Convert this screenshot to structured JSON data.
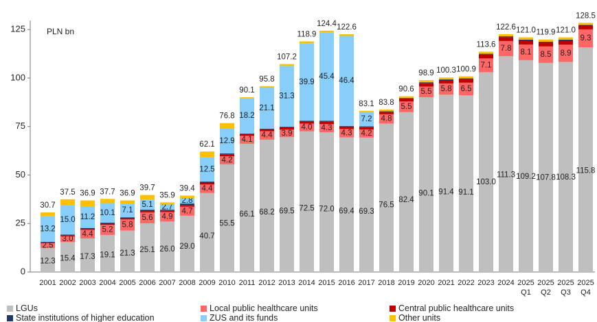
{
  "chart_data": {
    "type": "stacked_bar",
    "unit_label": "PLN bn",
    "categories": [
      "2001",
      "2002",
      "2003",
      "2004",
      "2005",
      "2006",
      "2007",
      "2008",
      "2009",
      "2010",
      "2011",
      "2012",
      "2013",
      "2014",
      "2015",
      "2016",
      "2017",
      "2018",
      "2019",
      "2020",
      "2021",
      "2022",
      "2023",
      "2024",
      "2025 Q1",
      "2025 Q2",
      "2025 Q3",
      "2025 Q4"
    ],
    "ylim": [
      0,
      130
    ],
    "yticks": [
      0,
      25,
      50,
      75,
      100,
      125
    ],
    "series": [
      {
        "name": "LGUs",
        "color": "#bfbfbf",
        "values": [
          12.3,
          15.4,
          17.3,
          19.1,
          21.3,
          25.1,
          26.0,
          29.0,
          40.7,
          55.5,
          66.1,
          68.2,
          69.5,
          72.5,
          72.0,
          69.4,
          69.3,
          76.5,
          82.4,
          90.1,
          91.4,
          91.1,
          103.0,
          111.3,
          109.2,
          107.8,
          108.3,
          115.8
        ],
        "value_labels": [
          "12.3",
          "15.4",
          "17.3",
          "19.1",
          "21.3",
          "25.1",
          "26.0",
          "29.0",
          "40.7",
          "55.5",
          "66.1",
          "68.2",
          "69.5",
          "72.5",
          "72.0",
          "69.4",
          "69.3",
          "76.5",
          "82.4",
          "90.1",
          "91.4",
          "91.1",
          "103.0",
          "111.3",
          "109.2",
          "107.8",
          "108.3",
          "115.8"
        ]
      },
      {
        "name": "Local public healthcare units",
        "color": "#ff6666",
        "values": [
          2.5,
          3.0,
          4.4,
          5.2,
          5.8,
          5.6,
          4.9,
          4.7,
          4.4,
          4.2,
          4.1,
          4.4,
          3.9,
          4.0,
          4.3,
          4.3,
          4.2,
          4.8,
          5.5,
          5.5,
          5.8,
          6.5,
          7.1,
          7.8,
          8.1,
          8.5,
          8.9,
          9.3
        ],
        "value_labels": [
          "2.5",
          "3.0",
          "4.4",
          "5.2",
          "5.8",
          "5.6",
          "4.9",
          "4.7",
          "4.4",
          "4.2",
          "4.1",
          "4.4",
          "3.9",
          "4.0",
          "4.3",
          "4.3",
          "4.2",
          "4.8",
          "5.5",
          "5.5",
          "5.8",
          "6.5",
          "7.1",
          "7.8",
          "8.1",
          "8.5",
          "8.9",
          "9.3"
        ]
      },
      {
        "name": "Central public healthcare units",
        "color": "#c00000",
        "values": [
          0.3,
          0.4,
          0.5,
          0.6,
          0.6,
          0.7,
          0.6,
          0.8,
          1.0,
          1.0,
          0.9,
          1.0,
          1.2,
          1.2,
          1.3,
          1.3,
          1.3,
          1.3,
          1.5,
          1.8,
          1.7,
          1.8,
          2.0,
          2.0,
          2.1,
          2.0,
          2.2,
          1.9
        ]
      },
      {
        "name": "State institutions of higher education",
        "color": "#1f3864",
        "values": [
          0.4,
          0.5,
          0.5,
          0.5,
          0.5,
          0.7,
          0.6,
          0.8,
          0.5,
          0.4,
          0.3,
          0.3,
          0.3,
          0.3,
          0.4,
          0.3,
          0.3,
          0.3,
          0.3,
          0.4,
          0.4,
          0.4,
          0.4,
          0.4,
          0.4,
          0.4,
          0.4,
          0.4
        ]
      },
      {
        "name": "ZUS and its funds",
        "color": "#87cefa",
        "values": [
          13.2,
          15.0,
          11.2,
          10.1,
          7.1,
          5.1,
          2.7,
          2.8,
          12.5,
          12.9,
          18.2,
          21.1,
          31.3,
          39.9,
          45.4,
          46.4,
          7.2,
          null,
          null,
          null,
          null,
          null,
          null,
          null,
          null,
          null,
          null,
          null
        ],
        "value_labels": [
          "13.2",
          "15.0",
          "11.2",
          "10.1",
          "7.1",
          "5.1",
          "2.7",
          "2.8",
          "12.5",
          "12.9",
          "18.2",
          "21.1",
          "31.3",
          "39.9",
          "45.4",
          "46.4",
          "7.2",
          null,
          null,
          null,
          null,
          null,
          null,
          null,
          null,
          null,
          null,
          null
        ]
      },
      {
        "name": "Other units",
        "color": "#ffc000",
        "values": [
          2.0,
          3.2,
          3.0,
          2.2,
          1.6,
          2.5,
          1.1,
          1.3,
          3.0,
          2.8,
          0.5,
          0.8,
          1.0,
          1.0,
          1.0,
          0.9,
          0.8,
          0.9,
          0.9,
          1.1,
          1.0,
          1.1,
          1.1,
          1.1,
          1.2,
          1.2,
          1.2,
          1.1
        ]
      }
    ],
    "totals": [
      30.7,
      37.5,
      36.9,
      37.7,
      36.9,
      39.7,
      35.9,
      39.4,
      62.1,
      76.8,
      90.1,
      95.8,
      107.2,
      118.9,
      124.4,
      122.6,
      83.1,
      83.8,
      90.6,
      98.9,
      100.3,
      100.9,
      113.6,
      122.6,
      121.0,
      119.9,
      121.0,
      128.5
    ],
    "total_labels": [
      "30.7",
      "37.5",
      "36.9",
      "37.7",
      "36.9",
      "39.7",
      "35.9",
      "39.4",
      "62.1",
      "76.8",
      "90.1",
      "95.8",
      "107.2",
      "118.9",
      "124.4",
      "122.6",
      "83.1",
      "83.8",
      "90.6",
      "98.9",
      "100.3",
      "100.9",
      "113.6",
      "122.6",
      "121.0",
      "119.9",
      "121.0",
      "128.5"
    ]
  }
}
